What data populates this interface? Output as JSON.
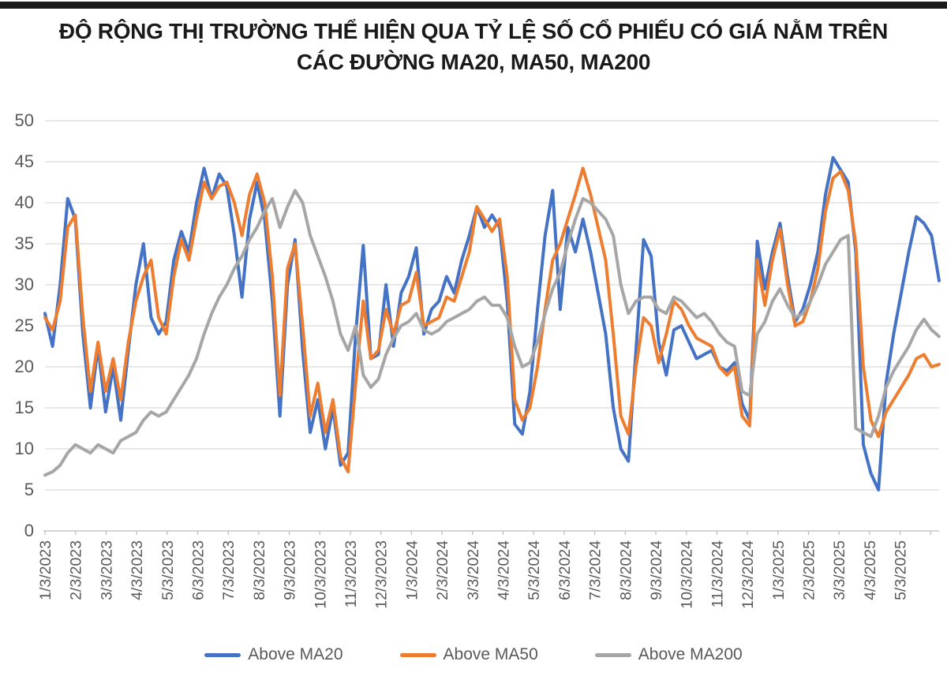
{
  "header": {
    "bar_color": "#1b1b1b",
    "title_line1": "ĐỘ RỘNG THỊ TRƯỜNG THỂ HIỆN QUA TỶ LỆ SỐ CỔ PHIẾU CÓ GIÁ NẰM TRÊN",
    "title_line2": "CÁC ĐƯỜNG MA20, MA50, MA200"
  },
  "chart_data": {
    "type": "line",
    "title": "ĐỘ RỘNG THỊ TRƯỜNG THỂ HIỆN QUA TỶ LỆ SỐ CỔ PHIẾU CÓ GIÁ NẰM TRÊN CÁC ĐƯỜNG MA20, MA50, MA200",
    "xlabel": "",
    "ylabel": "",
    "ylim": [
      0,
      50
    ],
    "yticks": [
      0,
      5,
      10,
      15,
      20,
      25,
      30,
      35,
      40,
      45,
      50
    ],
    "grid": true,
    "grid_color": "#d9d9d9",
    "axis_color": "#bfbfbf",
    "tick_label_color": "#595959",
    "legend_position": "bottom",
    "x_labels": [
      "1/3/2023",
      "2/3/2023",
      "3/3/2023",
      "4/3/2023",
      "5/3/2023",
      "6/3/2023",
      "7/3/2023",
      "8/3/2023",
      "9/3/2023",
      "10/3/2023",
      "11/3/2023",
      "12/3/2023",
      "1/3/2024",
      "2/3/2024",
      "3/3/2024",
      "4/3/2024",
      "5/3/2024",
      "6/3/2024",
      "7/3/2024",
      "8/3/2024",
      "9/3/2024",
      "10/3/2024",
      "11/3/2024",
      "12/3/2024",
      "1/3/2025",
      "2/3/2025",
      "3/3/2025",
      "4/3/2025",
      "5/3/2025"
    ],
    "sampling": "approx. weekly values (4 per labeled month), percent of stocks above each moving average",
    "samples_per_month": 4,
    "series": [
      {
        "name": "Above MA20",
        "color": "#4472C4",
        "values": [
          26.5,
          22.5,
          30,
          40.5,
          38,
          24,
          15,
          22.5,
          14.5,
          20,
          13.5,
          22,
          30,
          35,
          26,
          24,
          25.5,
          33,
          36.5,
          34,
          40,
          44.2,
          40.5,
          43.5,
          42,
          36,
          28.5,
          38,
          42.5,
          38,
          28,
          14,
          30,
          35.5,
          22,
          12,
          16,
          10,
          15,
          8,
          9.5,
          24,
          34.8,
          21,
          21.5,
          30,
          22.5,
          29,
          31,
          34.5,
          24,
          27,
          28,
          31,
          29,
          33,
          36,
          39.5,
          37,
          38.5,
          37,
          28,
          13,
          11.8,
          17,
          27,
          36,
          41.5,
          27,
          37,
          34,
          38,
          34,
          29,
          24,
          15,
          10,
          8.5,
          22,
          35.5,
          33.5,
          23,
          19,
          24.5,
          25,
          23,
          21,
          21.5,
          22,
          20,
          19.5,
          20.5,
          15.5,
          13.5,
          35.3,
          29.5,
          34,
          37.5,
          31,
          25.5,
          27,
          30,
          34,
          41,
          45.5,
          44,
          42.5,
          34,
          10.5,
          7,
          5,
          18,
          24,
          29,
          34,
          38.3,
          37.5,
          36,
          30.5
        ]
      },
      {
        "name": "Above MA50",
        "color": "#ED7D31",
        "values": [
          26,
          24.5,
          28,
          37,
          38.5,
          26,
          17,
          23,
          17,
          21,
          16,
          23,
          28,
          31,
          33,
          26,
          24,
          31,
          35.5,
          33,
          38,
          42.5,
          40.5,
          42,
          42.5,
          40,
          36,
          41,
          43.5,
          40,
          31,
          16.5,
          32,
          35,
          25,
          14,
          18,
          12,
          16,
          9,
          7.2,
          18,
          28,
          21,
          22,
          27,
          24,
          27.5,
          28,
          31.5,
          25,
          25.5,
          26,
          28.5,
          28,
          31,
          34,
          39.5,
          38,
          36.5,
          38,
          31,
          16,
          13.5,
          15,
          20,
          27,
          33,
          35,
          38,
          41,
          44.2,
          41,
          37,
          33,
          24,
          14,
          11.8,
          20,
          26,
          25,
          20.5,
          24,
          28,
          27,
          25,
          23.5,
          23,
          22.5,
          20,
          19,
          20,
          14,
          12.8,
          33,
          27.5,
          33,
          36.8,
          30,
          25,
          25.5,
          28,
          32,
          39,
          43,
          43.8,
          41.5,
          35,
          20,
          13.5,
          11.5,
          14.5,
          16,
          17.5,
          19,
          21,
          21.5,
          20,
          20.3
        ]
      },
      {
        "name": "Above MA200",
        "color": "#A6A6A6",
        "values": [
          6.8,
          7.2,
          8,
          9.5,
          10.5,
          10,
          9.5,
          10.5,
          10,
          9.5,
          11,
          11.5,
          12,
          13.5,
          14.5,
          14,
          14.5,
          16,
          17.5,
          19,
          21,
          24,
          26.5,
          28.5,
          30,
          32,
          33.5,
          35.5,
          37,
          39,
          40.5,
          37,
          39.5,
          41.5,
          40,
          36,
          33.5,
          31,
          28,
          24,
          22,
          25,
          19,
          17.5,
          18.5,
          21.5,
          23.5,
          25,
          25.5,
          26.5,
          24.5,
          24,
          24.5,
          25.5,
          26,
          26.5,
          27,
          28,
          28.5,
          27.5,
          27.5,
          26,
          22.5,
          20,
          20.5,
          23,
          26.5,
          29.5,
          31.5,
          35,
          38,
          40.5,
          40,
          39,
          38,
          36,
          30,
          26.5,
          28,
          28.5,
          28.5,
          27,
          26.5,
          28.5,
          28,
          27,
          26,
          26.5,
          25.5,
          24,
          23,
          22.5,
          17,
          16.5,
          24,
          25.5,
          28,
          29.5,
          27.5,
          26,
          26.5,
          28,
          30,
          32.5,
          34,
          35.5,
          36,
          12.5,
          12,
          11.5,
          14,
          17.5,
          19.5,
          21,
          22.5,
          24.5,
          25.8,
          24.5,
          23.7
        ]
      }
    ]
  },
  "legend": {
    "items": [
      "Above MA20",
      "Above MA50",
      "Above MA200"
    ]
  }
}
